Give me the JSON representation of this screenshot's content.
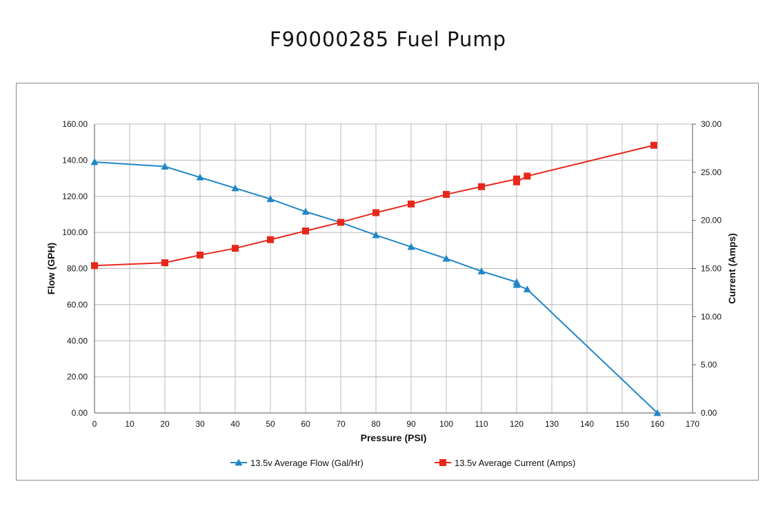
{
  "title": "F90000285 Fuel Pump",
  "chart_data": {
    "type": "line",
    "title": "F90000285 Fuel Pump",
    "xlabel": "Pressure (PSI)",
    "ylabel": "Flow (GPH)",
    "y2label": "Current (Amps)",
    "xlim": [
      0,
      170
    ],
    "ylim": [
      0,
      160
    ],
    "y2lim": [
      0,
      30
    ],
    "x_ticks": [
      "0",
      "10",
      "20",
      "30",
      "40",
      "50",
      "60",
      "70",
      "80",
      "90",
      "100",
      "110",
      "120",
      "130",
      "140",
      "150",
      "160",
      "170"
    ],
    "y_ticks": [
      "0.00",
      "20.00",
      "40.00",
      "60.00",
      "80.00",
      "100.00",
      "120.00",
      "140.00",
      "160.00"
    ],
    "y2_ticks": [
      "0.00",
      "5.00",
      "10.00",
      "15.00",
      "20.00",
      "25.00",
      "30.00"
    ],
    "grid": true,
    "legend_position": "bottom",
    "series": [
      {
        "name": "13.5v Average Flow (Gal/Hr)",
        "axis": "left",
        "color": "#1f86c8",
        "marker": "triangle",
        "x": [
          0,
          20,
          30,
          40,
          50,
          60,
          70,
          80,
          90,
          100,
          110,
          120,
          120,
          123,
          160
        ],
        "y": [
          139,
          136.5,
          130.5,
          124.5,
          118.5,
          111.5,
          105.5,
          98.5,
          92,
          85.5,
          78.5,
          72.5,
          71,
          68.5,
          0
        ]
      },
      {
        "name": "13.5v Average Current (Amps)",
        "axis": "right",
        "color": "#e8271b",
        "marker": "square",
        "x": [
          0,
          20,
          30,
          40,
          50,
          60,
          70,
          80,
          90,
          100,
          110,
          120,
          120,
          123,
          159
        ],
        "y": [
          15.3,
          15.6,
          16.4,
          17.1,
          18.0,
          18.9,
          19.8,
          20.8,
          21.7,
          22.7,
          23.5,
          24.3,
          24.0,
          24.6,
          27.8
        ]
      }
    ]
  }
}
